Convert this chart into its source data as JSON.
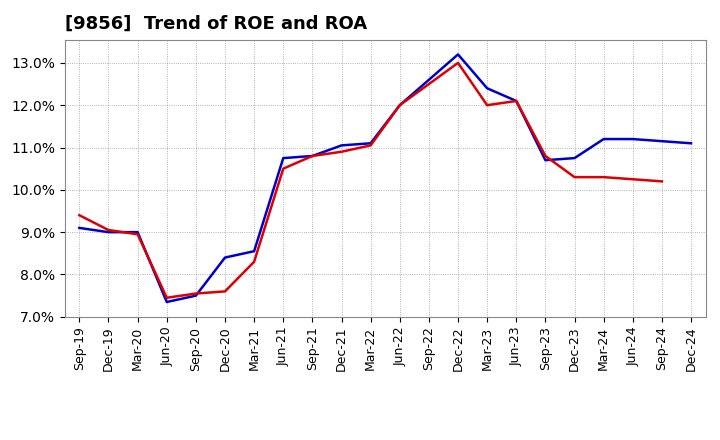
{
  "title": "[9856]  Trend of ROE and ROA",
  "x_labels": [
    "Sep-19",
    "Dec-19",
    "Mar-20",
    "Jun-20",
    "Sep-20",
    "Dec-20",
    "Mar-21",
    "Jun-21",
    "Sep-21",
    "Dec-21",
    "Mar-22",
    "Jun-22",
    "Sep-22",
    "Dec-22",
    "Mar-23",
    "Jun-23",
    "Sep-23",
    "Dec-23",
    "Mar-24",
    "Jun-24",
    "Sep-24",
    "Dec-24"
  ],
  "roe": [
    9.4,
    9.05,
    8.95,
    7.45,
    7.55,
    7.6,
    8.3,
    10.5,
    10.8,
    10.9,
    11.05,
    12.0,
    12.5,
    13.0,
    12.0,
    12.1,
    10.8,
    10.3,
    10.3,
    10.25,
    10.2,
    null
  ],
  "roa": [
    9.1,
    9.0,
    9.0,
    7.35,
    7.5,
    8.4,
    8.55,
    10.75,
    10.8,
    11.05,
    11.1,
    12.0,
    12.6,
    13.2,
    12.4,
    12.1,
    10.7,
    10.75,
    11.2,
    11.2,
    11.15,
    11.1
  ],
  "roe_color": "#dd0000",
  "roa_color": "#0000cc",
  "background_color": "#ffffff",
  "plot_bg_color": "#ffffff",
  "grid_color": "#999999",
  "ylim": [
    7.0,
    13.55
  ],
  "yticks": [
    7.0,
    8.0,
    9.0,
    10.0,
    11.0,
    12.0,
    13.0
  ],
  "title_fontsize": 13,
  "legend_fontsize": 10,
  "axis_tick_fontsize": 9
}
